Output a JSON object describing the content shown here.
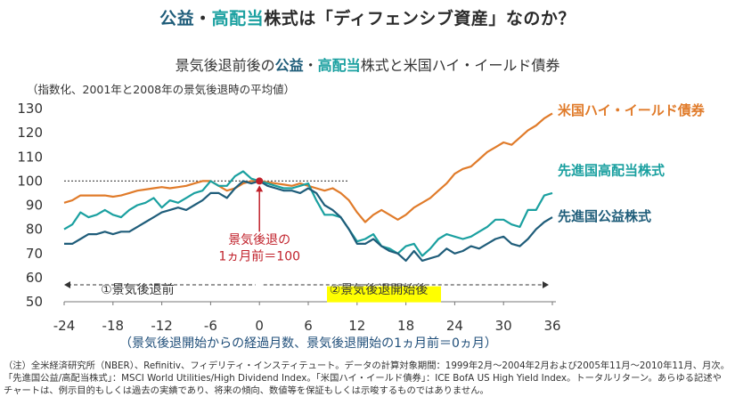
{
  "title": {
    "pre": "",
    "a": "公益",
    "mid": "・",
    "b": "高配当",
    "post": "株式は「ディフェンシブ資産」なのか？"
  },
  "subtitle": {
    "pre": "景気後退前後の",
    "a": "公益",
    "mid": "・",
    "b": "高配当",
    "post": "株式と米国ハイ・イールド債券"
  },
  "index_note": "（指数化、2001年と2008年の景気後退時の平均値）",
  "x_caption": "（景気後退開始からの経過月数、景気後退開始の1ヵ月前＝0ヵ月）",
  "footnote": "（注）全米経済研究所（NBER）、Refinitiv、フィデリティ・インスティテュート。データの計算対象期間：1999年2月〜2004年2月および2005年11月〜2010年11月、月次。「先進国公益/高配当株式」：MSCI World Utilities/High Dividend Index。「米国ハイ・イールド債券」：ICE BofA US High Yield Index。トータルリターン。あらゆる記述やチャートは、例示目的もしくは過去の実績であり、将来の傾向、数値等を保証もしくは示唆するものではありません。",
  "annotation": {
    "line1": "景気後退の",
    "line2": "1ヵ月前＝100"
  },
  "phase_before": "①景気後退前",
  "phase_after": "②景気後退開始後",
  "colors": {
    "hy": "#e07b2a",
    "highdiv": "#1aa0a0",
    "util": "#1f5d7a",
    "marker": "#c0202a",
    "phase_highlight": "#ffff00"
  },
  "chart_data": {
    "type": "line",
    "xlim": [
      -24,
      36
    ],
    "ylim": [
      50,
      130
    ],
    "x_ticks": [
      -24,
      -18,
      -12,
      -6,
      0,
      6,
      12,
      18,
      24,
      30,
      36
    ],
    "x_tick_labels": [
      "-24",
      "-18",
      "-12",
      "-6",
      "0",
      "6",
      "12",
      "18",
      "24",
      "30",
      "36"
    ],
    "y_ticks": [
      50,
      60,
      70,
      80,
      90,
      100,
      110,
      120,
      130
    ],
    "reference_line": 100,
    "x": [
      -24,
      -23,
      -22,
      -21,
      -20,
      -19,
      -18,
      -17,
      -16,
      -15,
      -14,
      -13,
      -12,
      -11,
      -10,
      -9,
      -8,
      -7,
      -6,
      -5,
      -4,
      -3,
      -2,
      -1,
      0,
      1,
      2,
      3,
      4,
      5,
      6,
      7,
      8,
      9,
      10,
      11,
      12,
      13,
      14,
      15,
      16,
      17,
      18,
      19,
      20,
      21,
      22,
      23,
      24,
      25,
      26,
      27,
      28,
      29,
      30,
      31,
      32,
      33,
      34,
      35,
      36
    ],
    "series": [
      {
        "name": "米国ハイ・イールド債券",
        "color": "#e07b2a",
        "values": [
          91,
          92,
          94,
          94,
          94,
          94,
          93.5,
          94,
          95,
          96,
          96.5,
          97,
          97.5,
          97,
          97.5,
          98,
          99,
          100,
          100,
          98,
          96,
          97,
          99,
          100,
          100,
          99.5,
          99,
          98.5,
          98,
          99,
          98,
          97,
          96,
          97,
          95,
          92,
          87,
          83,
          86,
          88,
          86,
          84,
          86,
          89,
          91,
          93,
          96,
          99,
          103,
          105,
          106,
          109,
          112,
          114,
          116,
          115,
          118,
          121,
          123,
          126,
          128
        ]
      },
      {
        "name": "先進国高配当株式",
        "color": "#1aa0a0",
        "values": [
          80,
          82,
          87,
          85,
          86,
          88,
          86,
          85,
          88,
          90,
          91,
          93,
          89,
          92,
          91,
          93,
          95,
          96,
          100,
          98,
          98,
          102,
          104,
          101,
          100,
          99,
          98,
          97,
          97,
          98,
          99,
          92,
          86,
          86,
          85,
          80,
          75,
          76,
          78,
          73,
          72,
          70,
          73,
          74,
          69,
          72,
          76,
          78,
          77,
          76,
          77,
          79,
          81,
          84,
          84,
          82,
          81,
          88,
          88,
          94,
          95
        ]
      },
      {
        "name": "先進国公益株式",
        "color": "#1f5d7a",
        "values": [
          74,
          74,
          76,
          78,
          78,
          79,
          78,
          79,
          79,
          81,
          83,
          85,
          87,
          88,
          89,
          88,
          90,
          92,
          95,
          95,
          93,
          97,
          100,
          99,
          100,
          98,
          97,
          96,
          96,
          95,
          97,
          95,
          90,
          88,
          85,
          80,
          74,
          74,
          76,
          73,
          71,
          70,
          67,
          71,
          67,
          68,
          69,
          72,
          70,
          71,
          73,
          72,
          74,
          76,
          77,
          74,
          73,
          76,
          80,
          83,
          85
        ]
      }
    ]
  }
}
